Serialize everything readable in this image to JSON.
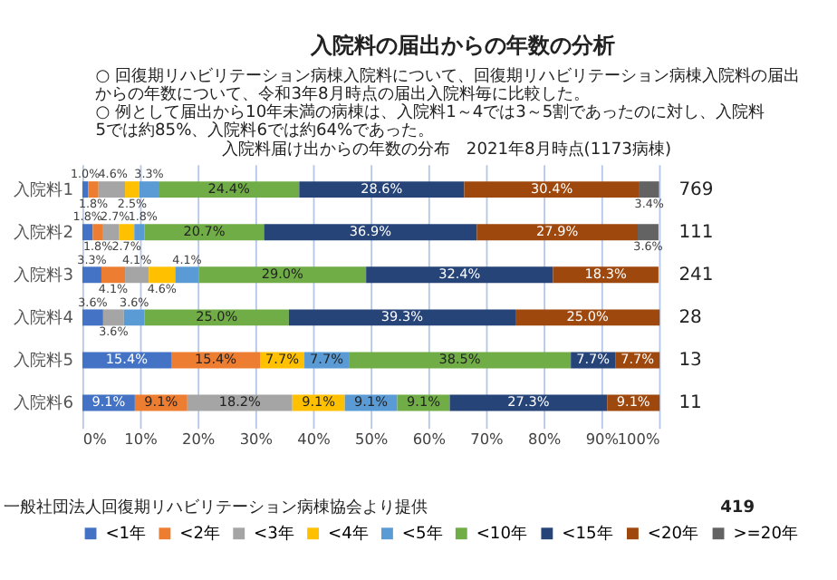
{
  "chart_data": {
    "type": "bar",
    "orientation": "horizontal",
    "stacked": true,
    "title": "入院料の届出からの年数の分析",
    "subtitle": "入院料届け出からの年数の分布　2021年8月時点(1173病棟)",
    "categories": [
      "入院料1",
      "入院料2",
      "入院料3",
      "入院料4",
      "入院料5",
      "入院料6"
    ],
    "series": [
      {
        "name": "<1年",
        "color": "#4472c4",
        "values": [
          1.0,
          1.8,
          3.3,
          3.6,
          15.4,
          9.1
        ],
        "value_labels": [
          "1.0%",
          "1.8%",
          "3.3%",
          "3.6%",
          "15.4%",
          "9.1%"
        ]
      },
      {
        "name": "<2年",
        "color": "#ed7d31",
        "values": [
          1.8,
          1.8,
          4.1,
          0,
          15.4,
          9.1
        ],
        "value_labels": [
          "1.8%",
          "1.8%",
          "4.1%",
          null,
          "15.4%",
          "9.1%"
        ]
      },
      {
        "name": "<3年",
        "color": "#a5a5a5",
        "values": [
          4.6,
          2.7,
          4.1,
          3.6,
          0,
          18.2
        ],
        "value_labels": [
          "4.6%",
          "2.7%",
          "4.1%",
          "3.6%",
          null,
          "18.2%"
        ]
      },
      {
        "name": "<4年",
        "color": "#ffc000",
        "values": [
          2.5,
          2.7,
          4.6,
          0,
          7.7,
          9.1
        ],
        "value_labels": [
          "2.5%",
          "2.7%",
          "4.6%",
          null,
          "7.7%",
          "9.1%"
        ]
      },
      {
        "name": "<5年",
        "color": "#5b9bd5",
        "values": [
          3.3,
          1.8,
          4.1,
          3.6,
          7.7,
          9.1
        ],
        "value_labels": [
          "3.3%",
          "1.8%",
          "4.1%",
          "3.6%",
          "7.7%",
          "9.1%"
        ]
      },
      {
        "name": "<10年",
        "color": "#70ad47",
        "values": [
          24.4,
          20.7,
          29.0,
          25.0,
          38.5,
          9.1
        ],
        "value_labels": [
          "24.4%",
          "20.7%",
          "29.0%",
          "25.0%",
          "38.5%",
          "9.1%"
        ]
      },
      {
        "name": "<15年",
        "color": "#264478",
        "values": [
          28.6,
          36.9,
          32.4,
          39.3,
          7.7,
          27.3
        ],
        "value_labels": [
          "28.6%",
          "36.9%",
          "32.4%",
          "39.3%",
          "7.7%",
          "27.3%"
        ]
      },
      {
        "name": "<20年",
        "color": "#9e480e",
        "values": [
          30.4,
          27.9,
          18.3,
          25.0,
          7.7,
          9.1
        ],
        "value_labels": [
          "30.4%",
          "27.9%",
          "18.3%",
          "25.0%",
          "7.7%",
          "9.1%"
        ]
      },
      {
        "name": ">=20年",
        "color": "#636363",
        "values": [
          3.4,
          3.6,
          0,
          0,
          0,
          0
        ],
        "value_labels": [
          "3.4%",
          "3.6%",
          null,
          null,
          null,
          null
        ]
      }
    ],
    "xlim": [
      0,
      100
    ],
    "xticks": [
      {
        "value": 0,
        "label": "0%"
      },
      {
        "value": 10,
        "label": "10%"
      },
      {
        "value": 20,
        "label": "20%"
      },
      {
        "value": 30,
        "label": "30%"
      },
      {
        "value": 40,
        "label": "40%"
      },
      {
        "value": 50,
        "label": "50%"
      },
      {
        "value": 60,
        "label": "60%"
      },
      {
        "value": 70,
        "label": "70%"
      },
      {
        "value": 80,
        "label": "80%"
      },
      {
        "value": 90,
        "label": "90%"
      },
      {
        "value": 100,
        "label": "100%"
      }
    ],
    "grid": "x",
    "legend": "bottom",
    "annotations": [
      "○ 回復期リハビリテーション病棟入院料について、回復期リハビリテーション病棟入院料の届出からの年数について、令和3年8月時点の届出入院料毎に比較した。",
      "○ 例として届出から10年未満の病棟は、入院料1～4では3～5割であったのに対し、入院料5では約85%、入院料6では約64%であった。",
      "769",
      "111",
      "241",
      "28",
      "13",
      "11",
      "一般社団法人回復期リハビリテーション病棟協会より提供",
      "419"
    ]
  }
}
